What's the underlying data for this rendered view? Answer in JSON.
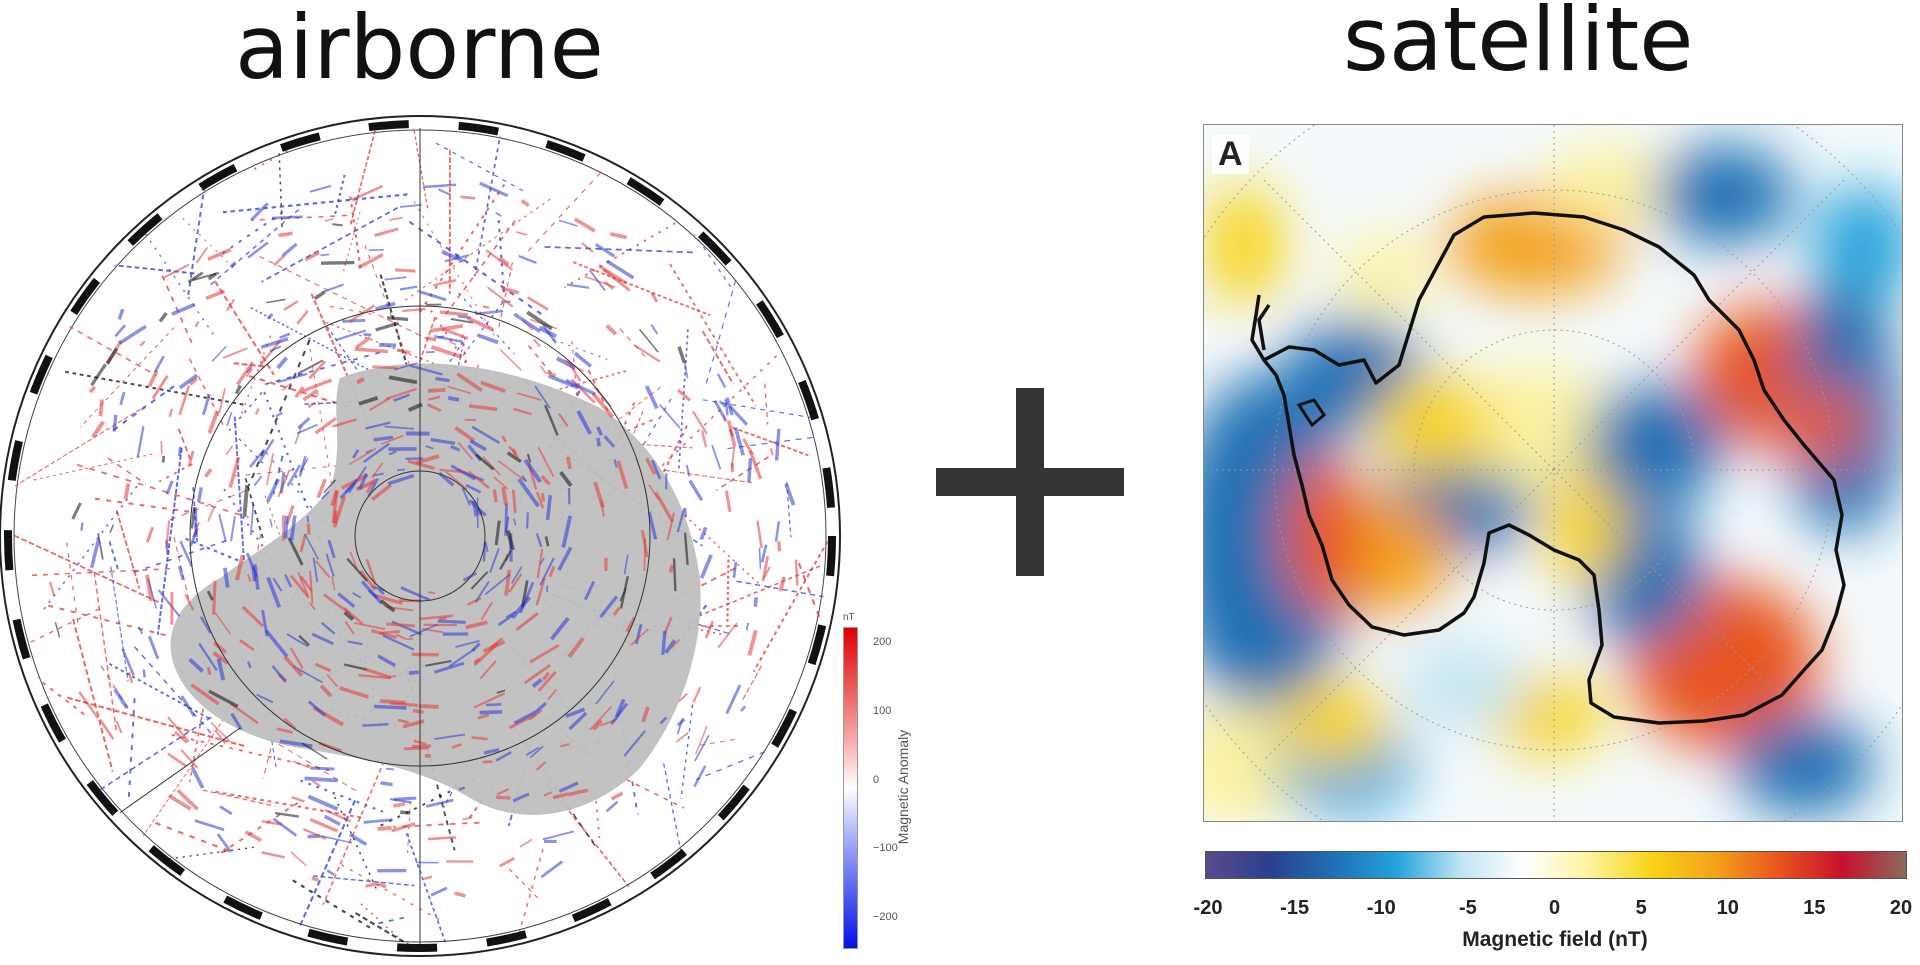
{
  "titles": {
    "left": "airborne",
    "right": "satellite"
  },
  "satellite_panel": {
    "letter": "A"
  },
  "colorbar_right": {
    "ticks": [
      "-20",
      "-15",
      "-10",
      "-5",
      "0",
      "5",
      "10",
      "15",
      "20"
    ],
    "label": "Magnetic field (nT)",
    "colors": [
      "#5b4a8b",
      "#2c3f8f",
      "#1f6fb4",
      "#25a3dc",
      "#bfe4f3",
      "#ffffff",
      "#fdf3a0",
      "#f8d417",
      "#f4a21a",
      "#e8551d",
      "#c8102e",
      "#8b6a5f"
    ]
  },
  "colorbar_left": {
    "unit": "nT",
    "ticks": [
      "200",
      "100",
      "0",
      "−100",
      "−200"
    ],
    "label": "Magnetic Anomaly"
  },
  "colors": {
    "plus": "#333333",
    "land": "#bfbfbf",
    "positive": "#e33a3a",
    "negative": "#2b3bd6",
    "coastline": "#111111"
  }
}
